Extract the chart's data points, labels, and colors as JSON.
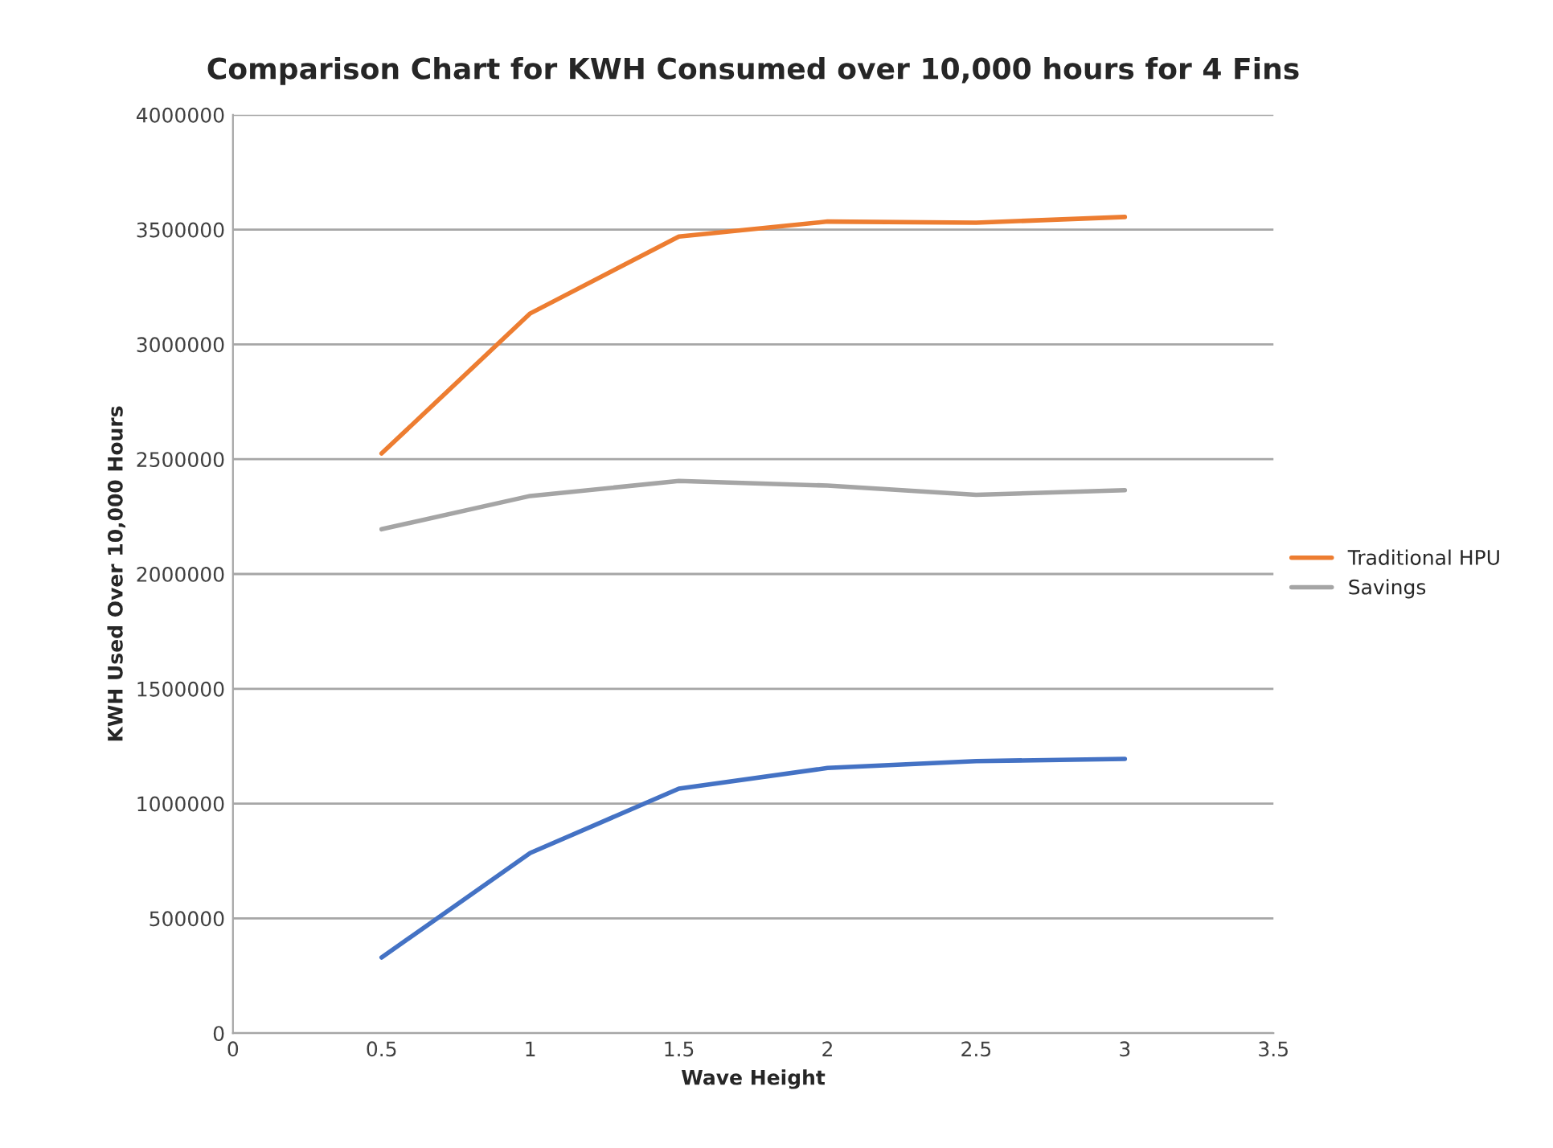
{
  "chart_data": {
    "type": "line",
    "title": "Comparison Chart for KWH Consumed over 10,000 hours for 4 Fins",
    "xlabel": "Wave Height",
    "ylabel": "KWH Used Over 10,000 Hours",
    "x": [
      0.5,
      1,
      1.5,
      2,
      2.5,
      3
    ],
    "series": [
      {
        "color": "#4472c4",
        "values": [
          330000,
          785000,
          1065000,
          1155000,
          1185000,
          1195000
        ]
      },
      {
        "name": "Traditional HPU",
        "color": "#ed7d31",
        "values": [
          2525000,
          3135000,
          3470000,
          3535000,
          3530000,
          3555000
        ]
      },
      {
        "name": "Savings",
        "color": "#a5a5a5",
        "values": [
          2195000,
          2340000,
          2405000,
          2385000,
          2345000,
          2365000
        ]
      }
    ],
    "xlim": [
      0,
      3.5
    ],
    "xticks": [
      0,
      0.5,
      1,
      1.5,
      2,
      2.5,
      3,
      3.5
    ],
    "ylim": [
      0,
      4000000
    ],
    "yticks": [
      0,
      500000,
      1000000,
      1500000,
      2000000,
      2500000,
      3000000,
      3500000,
      4000000
    ],
    "grid": "y",
    "legend": "right",
    "marker": "none",
    "line_style": "solid"
  }
}
